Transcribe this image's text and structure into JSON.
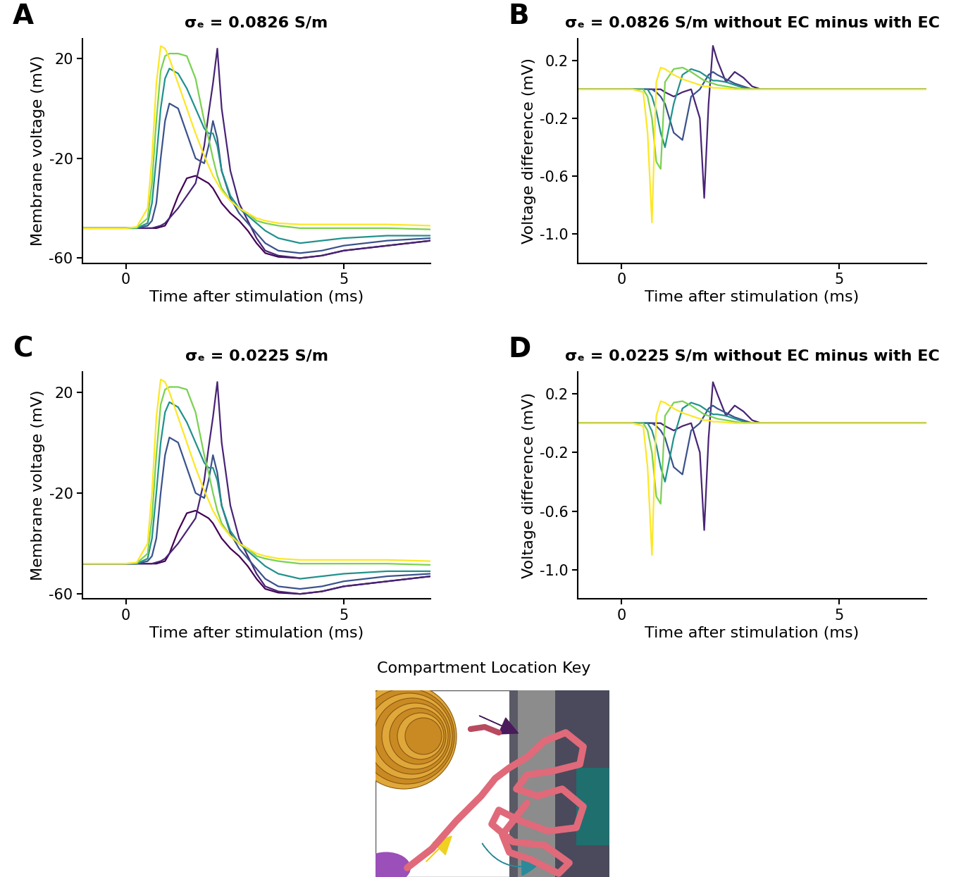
{
  "chart_data": [
    {
      "type": "line",
      "label": "A",
      "title": "σₑ = 0.0826 S/m",
      "x_label": "Time after stimulation (ms)",
      "y_label": "Membrane voltage (mV)",
      "xlim": [
        -1,
        7
      ],
      "xticks": [
        0,
        5
      ],
      "ylim": [
        -62,
        28
      ],
      "yticks": [
        -60,
        -20,
        20
      ],
      "x": [
        -1,
        0,
        0.25,
        0.5,
        0.6,
        0.7,
        0.8,
        0.9,
        1.0,
        1.2,
        1.4,
        1.6,
        1.8,
        1.9,
        2.0,
        2.1,
        2.2,
        2.4,
        2.6,
        2.8,
        3.0,
        3.2,
        3.5,
        4.0,
        4.5,
        5.0,
        6.0,
        7.0
      ],
      "series": [
        {
          "color": "#440154",
          "values": [
            -48,
            -48,
            -48,
            -48,
            -48,
            -48,
            -47.5,
            -47,
            -44,
            -35,
            -28,
            -27,
            -29,
            -30,
            -32,
            -35,
            -38,
            -42,
            -45,
            -49,
            -54,
            -58,
            -59.5,
            -60,
            -59,
            -57,
            -55,
            -53
          ]
        },
        {
          "color": "#482475",
          "values": [
            -48,
            -48,
            -48,
            -48,
            -48,
            -47.5,
            -47,
            -46,
            -44,
            -40,
            -35,
            -30,
            -15,
            -2,
            10,
            24,
            0,
            -25,
            -38,
            -45,
            -52,
            -57,
            -59,
            -60,
            -59,
            -57,
            -55,
            -53
          ]
        },
        {
          "color": "#3b528b",
          "values": [
            -48,
            -48,
            -48,
            -47,
            -45,
            -38,
            -20,
            -5,
            2,
            0,
            -10,
            -20,
            -22,
            -15,
            -5,
            -12,
            -25,
            -36,
            -42,
            -46,
            -50,
            -54,
            -57,
            -58,
            -57,
            -55,
            -53,
            -52
          ]
        },
        {
          "color": "#21918c",
          "values": [
            -48,
            -48,
            -48,
            -46,
            -38,
            -20,
            0,
            12,
            16,
            14,
            8,
            0,
            -8,
            -10,
            -10,
            -15,
            -25,
            -35,
            -40,
            -43,
            -46,
            -49,
            -52,
            -54,
            -53,
            -52,
            -51,
            -51
          ]
        },
        {
          "color": "#7ad151",
          "values": [
            -48,
            -48,
            -47.8,
            -44,
            -30,
            -5,
            15,
            21,
            22,
            22,
            21,
            12,
            -5,
            -12,
            -20,
            -27,
            -32,
            -37,
            -40,
            -42,
            -45,
            -46,
            -47,
            -48,
            -48,
            -48,
            -48,
            -48.5
          ]
        },
        {
          "color": "#fde725",
          "values": [
            -48,
            -48,
            -47.5,
            -40,
            -20,
            10,
            25,
            24,
            20,
            10,
            0,
            -10,
            -19,
            -23,
            -27,
            -30,
            -33,
            -37,
            -40,
            -42,
            -44,
            -45,
            -46,
            -46.5,
            -46.5,
            -46.5,
            -46.5,
            -47
          ]
        }
      ]
    },
    {
      "type": "line",
      "label": "B",
      "title": "σₑ = 0.0826 S/m without EC minus with EC",
      "x_label": "Time after stimulation (ms)",
      "y_label": "Voltage difference (mV)",
      "xlim": [
        -1,
        7
      ],
      "xticks": [
        0,
        5
      ],
      "ylim": [
        -1.2,
        0.35
      ],
      "yticks": [
        -1.0,
        -0.6,
        -0.2,
        0.2
      ],
      "x": [
        -1,
        0,
        0.25,
        0.5,
        0.6,
        0.7,
        0.8,
        0.9,
        1.0,
        1.2,
        1.4,
        1.6,
        1.8,
        1.9,
        2.0,
        2.1,
        2.2,
        2.4,
        2.6,
        2.8,
        3.0,
        3.2,
        3.5,
        4.0,
        4.5,
        5.0,
        6.0,
        7.0
      ],
      "series": [
        {
          "color": "#482475",
          "values": [
            0,
            0,
            0,
            0,
            0,
            0,
            0,
            0,
            -0.02,
            -0.05,
            -0.02,
            0,
            -0.2,
            -0.75,
            -0.1,
            0.3,
            0.2,
            0.05,
            0.12,
            0.08,
            0.02,
            0,
            0,
            0,
            0,
            0,
            0,
            0
          ]
        },
        {
          "color": "#3b528b",
          "values": [
            0,
            0,
            0,
            0,
            0,
            0,
            -0.02,
            -0.05,
            -0.1,
            -0.3,
            -0.35,
            -0.05,
            0.0,
            0.05,
            0.1,
            0.12,
            0.1,
            0.07,
            0.04,
            0.02,
            0,
            0,
            0,
            0,
            0,
            0,
            0,
            0
          ]
        },
        {
          "color": "#21918c",
          "values": [
            0,
            0,
            0,
            0,
            0,
            -0.05,
            -0.15,
            -0.3,
            -0.4,
            -0.1,
            0.1,
            0.14,
            0.12,
            0.1,
            0.08,
            0.06,
            0.06,
            0.05,
            0.03,
            0.01,
            0,
            0,
            0,
            0,
            0,
            0,
            0,
            0
          ]
        },
        {
          "color": "#7ad151",
          "values": [
            0,
            0,
            0,
            0,
            -0.05,
            -0.2,
            -0.5,
            -0.55,
            0.05,
            0.14,
            0.15,
            0.12,
            0.08,
            0.06,
            0.05,
            0.04,
            0.03,
            0.02,
            0.01,
            0,
            0,
            0,
            0,
            0,
            0,
            0,
            0,
            0
          ]
        },
        {
          "color": "#fde725",
          "values": [
            0,
            0,
            0,
            -0.02,
            -0.3,
            -0.92,
            0.05,
            0.15,
            0.14,
            0.1,
            0.07,
            0.05,
            0.03,
            0.02,
            0.02,
            0.01,
            0.01,
            0.005,
            0,
            0,
            0,
            0,
            0,
            0,
            0,
            0,
            0,
            0
          ]
        }
      ]
    },
    {
      "type": "line",
      "label": "C",
      "title": "σₑ = 0.0225 S/m",
      "x_label": "Time after stimulation (ms)",
      "y_label": "Membrane voltage (mV)",
      "xlim": [
        -1,
        7
      ],
      "xticks": [
        0,
        5
      ],
      "ylim": [
        -62,
        28
      ],
      "yticks": [
        -60,
        -20,
        20
      ],
      "x": [
        -1,
        0,
        0.25,
        0.5,
        0.6,
        0.7,
        0.8,
        0.9,
        1.0,
        1.2,
        1.4,
        1.6,
        1.8,
        1.9,
        2.0,
        2.1,
        2.2,
        2.4,
        2.6,
        2.8,
        3.0,
        3.2,
        3.5,
        4.0,
        4.5,
        5.0,
        6.0,
        7.0
      ],
      "series": [
        {
          "color": "#440154",
          "values": [
            -48,
            -48,
            -48,
            -48,
            -48,
            -48,
            -47.5,
            -47,
            -44,
            -35,
            -28,
            -27,
            -29,
            -30,
            -32,
            -35,
            -38,
            -42,
            -45,
            -49,
            -54,
            -58,
            -59.5,
            -60,
            -59,
            -57,
            -55,
            -53
          ]
        },
        {
          "color": "#482475",
          "values": [
            -48,
            -48,
            -48,
            -48,
            -48,
            -47.5,
            -47,
            -46,
            -44,
            -40,
            -35,
            -30,
            -15,
            -2,
            10,
            24,
            0,
            -25,
            -38,
            -45,
            -52,
            -57,
            -59,
            -60,
            -59,
            -57,
            -55,
            -53
          ]
        },
        {
          "color": "#3b528b",
          "values": [
            -48,
            -48,
            -48,
            -47,
            -45,
            -38,
            -20,
            -5,
            2,
            0,
            -10,
            -20,
            -22,
            -15,
            -5,
            -12,
            -25,
            -36,
            -42,
            -46,
            -50,
            -54,
            -57,
            -58,
            -57,
            -55,
            -53,
            -52
          ]
        },
        {
          "color": "#21918c",
          "values": [
            -48,
            -48,
            -48,
            -46,
            -38,
            -20,
            0,
            12,
            16,
            14,
            8,
            0,
            -8,
            -10,
            -10,
            -15,
            -25,
            -35,
            -40,
            -43,
            -46,
            -49,
            -52,
            -54,
            -53,
            -52,
            -51,
            -51
          ]
        },
        {
          "color": "#7ad151",
          "values": [
            -48,
            -48,
            -47.8,
            -44,
            -30,
            -5,
            15,
            21,
            22,
            22,
            21,
            12,
            -5,
            -12,
            -20,
            -27,
            -32,
            -37,
            -40,
            -42,
            -45,
            -46,
            -47,
            -48,
            -48,
            -48,
            -48,
            -48.5
          ]
        },
        {
          "color": "#fde725",
          "values": [
            -48,
            -48,
            -47.5,
            -40,
            -20,
            10,
            25,
            24,
            20,
            10,
            0,
            -10,
            -19,
            -23,
            -27,
            -30,
            -33,
            -37,
            -40,
            -42,
            -44,
            -45,
            -46,
            -46.5,
            -46.5,
            -46.5,
            -46.5,
            -47
          ]
        }
      ]
    },
    {
      "type": "line",
      "label": "D",
      "title": "σₑ = 0.0225 S/m without EC minus with EC",
      "x_label": "Time after stimulation (ms)",
      "y_label": "Voltage difference (mV)",
      "xlim": [
        -1,
        7
      ],
      "xticks": [
        0,
        5
      ],
      "ylim": [
        -1.2,
        0.35
      ],
      "yticks": [
        -1.0,
        -0.6,
        -0.2,
        0.2
      ],
      "x": [
        -1,
        0,
        0.25,
        0.5,
        0.6,
        0.7,
        0.8,
        0.9,
        1.0,
        1.2,
        1.4,
        1.6,
        1.8,
        1.9,
        2.0,
        2.1,
        2.2,
        2.4,
        2.6,
        2.8,
        3.0,
        3.2,
        3.5,
        4.0,
        4.5,
        5.0,
        6.0,
        7.0
      ],
      "series": [
        {
          "color": "#482475",
          "values": [
            0,
            0,
            0,
            0,
            0,
            0,
            0,
            0,
            -0.02,
            -0.05,
            -0.02,
            0,
            -0.2,
            -0.73,
            -0.1,
            0.28,
            0.2,
            0.05,
            0.12,
            0.08,
            0.02,
            0,
            0,
            0,
            0,
            0,
            0,
            0
          ]
        },
        {
          "color": "#3b528b",
          "values": [
            0,
            0,
            0,
            0,
            0,
            0,
            -0.02,
            -0.05,
            -0.1,
            -0.3,
            -0.35,
            -0.05,
            0.0,
            0.05,
            0.1,
            0.12,
            0.1,
            0.07,
            0.04,
            0.02,
            0,
            0,
            0,
            0,
            0,
            0,
            0,
            0
          ]
        },
        {
          "color": "#21918c",
          "values": [
            0,
            0,
            0,
            0,
            0,
            -0.05,
            -0.15,
            -0.3,
            -0.4,
            -0.1,
            0.1,
            0.14,
            0.12,
            0.1,
            0.08,
            0.06,
            0.06,
            0.05,
            0.03,
            0.01,
            0,
            0,
            0,
            0,
            0,
            0,
            0,
            0
          ]
        },
        {
          "color": "#7ad151",
          "values": [
            0,
            0,
            0,
            0,
            -0.05,
            -0.2,
            -0.5,
            -0.55,
            0.05,
            0.14,
            0.15,
            0.12,
            0.08,
            0.06,
            0.05,
            0.04,
            0.03,
            0.02,
            0.01,
            0,
            0,
            0,
            0,
            0,
            0,
            0,
            0,
            0
          ]
        },
        {
          "color": "#fde725",
          "values": [
            0,
            0,
            0,
            -0.02,
            -0.3,
            -0.9,
            0.05,
            0.15,
            0.14,
            0.1,
            0.07,
            0.05,
            0.03,
            0.02,
            0.02,
            0.01,
            0.01,
            0.005,
            0,
            0,
            0,
            0,
            0,
            0,
            0,
            0,
            0,
            0
          ]
        }
      ]
    }
  ],
  "diagram": {
    "title": "Compartment Location Key"
  }
}
